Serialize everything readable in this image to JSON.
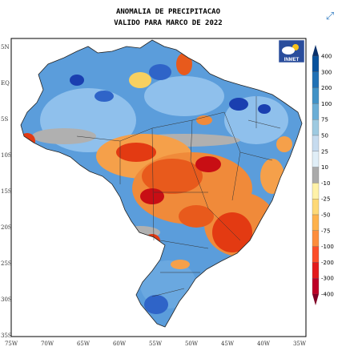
{
  "title_line1": "ANOMALIA DE PRECIPITACAO",
  "title_line2": "VALIDO PARA MARCO DE 2022",
  "logo_text": "INMET",
  "expand_icon": "expand-icon",
  "lat_labels": [
    "5N",
    "EQ",
    "5S",
    "10S",
    "15S",
    "20S",
    "25S",
    "30S",
    "35S"
  ],
  "lon_labels": [
    "75W",
    "70W",
    "65W",
    "60W",
    "55W",
    "50W",
    "45W",
    "40W",
    "35W"
  ],
  "colorbar": {
    "labels": [
      "400",
      "300",
      "200",
      "100",
      "75",
      "50",
      "25",
      "10",
      "-10",
      "-25",
      "-50",
      "-75",
      "-100",
      "-200",
      "-300",
      "-400"
    ],
    "colors": [
      "#08306b",
      "#08519c",
      "#2171b5",
      "#4292c6",
      "#6baed6",
      "#9ecae1",
      "#c6dbef",
      "#e0eef7",
      "#aaaaaa",
      "#fff2a8",
      "#fed976",
      "#feb24c",
      "#fd8d3c",
      "#fc4e2a",
      "#e31a1c",
      "#bd0026",
      "#800026"
    ]
  }
}
